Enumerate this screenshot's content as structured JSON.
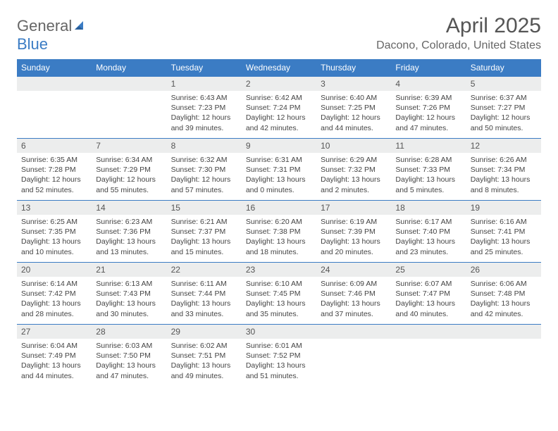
{
  "brand": {
    "part1": "General",
    "part2": "Blue"
  },
  "title": "April 2025",
  "location": "Dacono, Colorado, United States",
  "header_bg": "#3b7cc4",
  "header_fg": "#ffffff",
  "daynum_bg": "#eceded",
  "border_color": "#3b7cc4",
  "weekdays": [
    "Sunday",
    "Monday",
    "Tuesday",
    "Wednesday",
    "Thursday",
    "Friday",
    "Saturday"
  ],
  "weeks": [
    [
      null,
      null,
      {
        "n": "1",
        "sr": "6:43 AM",
        "ss": "7:23 PM",
        "dl": "12 hours and 39 minutes."
      },
      {
        "n": "2",
        "sr": "6:42 AM",
        "ss": "7:24 PM",
        "dl": "12 hours and 42 minutes."
      },
      {
        "n": "3",
        "sr": "6:40 AM",
        "ss": "7:25 PM",
        "dl": "12 hours and 44 minutes."
      },
      {
        "n": "4",
        "sr": "6:39 AM",
        "ss": "7:26 PM",
        "dl": "12 hours and 47 minutes."
      },
      {
        "n": "5",
        "sr": "6:37 AM",
        "ss": "7:27 PM",
        "dl": "12 hours and 50 minutes."
      }
    ],
    [
      {
        "n": "6",
        "sr": "6:35 AM",
        "ss": "7:28 PM",
        "dl": "12 hours and 52 minutes."
      },
      {
        "n": "7",
        "sr": "6:34 AM",
        "ss": "7:29 PM",
        "dl": "12 hours and 55 minutes."
      },
      {
        "n": "8",
        "sr": "6:32 AM",
        "ss": "7:30 PM",
        "dl": "12 hours and 57 minutes."
      },
      {
        "n": "9",
        "sr": "6:31 AM",
        "ss": "7:31 PM",
        "dl": "13 hours and 0 minutes."
      },
      {
        "n": "10",
        "sr": "6:29 AM",
        "ss": "7:32 PM",
        "dl": "13 hours and 2 minutes."
      },
      {
        "n": "11",
        "sr": "6:28 AM",
        "ss": "7:33 PM",
        "dl": "13 hours and 5 minutes."
      },
      {
        "n": "12",
        "sr": "6:26 AM",
        "ss": "7:34 PM",
        "dl": "13 hours and 8 minutes."
      }
    ],
    [
      {
        "n": "13",
        "sr": "6:25 AM",
        "ss": "7:35 PM",
        "dl": "13 hours and 10 minutes."
      },
      {
        "n": "14",
        "sr": "6:23 AM",
        "ss": "7:36 PM",
        "dl": "13 hours and 13 minutes."
      },
      {
        "n": "15",
        "sr": "6:21 AM",
        "ss": "7:37 PM",
        "dl": "13 hours and 15 minutes."
      },
      {
        "n": "16",
        "sr": "6:20 AM",
        "ss": "7:38 PM",
        "dl": "13 hours and 18 minutes."
      },
      {
        "n": "17",
        "sr": "6:19 AM",
        "ss": "7:39 PM",
        "dl": "13 hours and 20 minutes."
      },
      {
        "n": "18",
        "sr": "6:17 AM",
        "ss": "7:40 PM",
        "dl": "13 hours and 23 minutes."
      },
      {
        "n": "19",
        "sr": "6:16 AM",
        "ss": "7:41 PM",
        "dl": "13 hours and 25 minutes."
      }
    ],
    [
      {
        "n": "20",
        "sr": "6:14 AM",
        "ss": "7:42 PM",
        "dl": "13 hours and 28 minutes."
      },
      {
        "n": "21",
        "sr": "6:13 AM",
        "ss": "7:43 PM",
        "dl": "13 hours and 30 minutes."
      },
      {
        "n": "22",
        "sr": "6:11 AM",
        "ss": "7:44 PM",
        "dl": "13 hours and 33 minutes."
      },
      {
        "n": "23",
        "sr": "6:10 AM",
        "ss": "7:45 PM",
        "dl": "13 hours and 35 minutes."
      },
      {
        "n": "24",
        "sr": "6:09 AM",
        "ss": "7:46 PM",
        "dl": "13 hours and 37 minutes."
      },
      {
        "n": "25",
        "sr": "6:07 AM",
        "ss": "7:47 PM",
        "dl": "13 hours and 40 minutes."
      },
      {
        "n": "26",
        "sr": "6:06 AM",
        "ss": "7:48 PM",
        "dl": "13 hours and 42 minutes."
      }
    ],
    [
      {
        "n": "27",
        "sr": "6:04 AM",
        "ss": "7:49 PM",
        "dl": "13 hours and 44 minutes."
      },
      {
        "n": "28",
        "sr": "6:03 AM",
        "ss": "7:50 PM",
        "dl": "13 hours and 47 minutes."
      },
      {
        "n": "29",
        "sr": "6:02 AM",
        "ss": "7:51 PM",
        "dl": "13 hours and 49 minutes."
      },
      {
        "n": "30",
        "sr": "6:01 AM",
        "ss": "7:52 PM",
        "dl": "13 hours and 51 minutes."
      },
      null,
      null,
      null
    ]
  ],
  "labels": {
    "sunrise": "Sunrise:",
    "sunset": "Sunset:",
    "daylight": "Daylight:"
  }
}
